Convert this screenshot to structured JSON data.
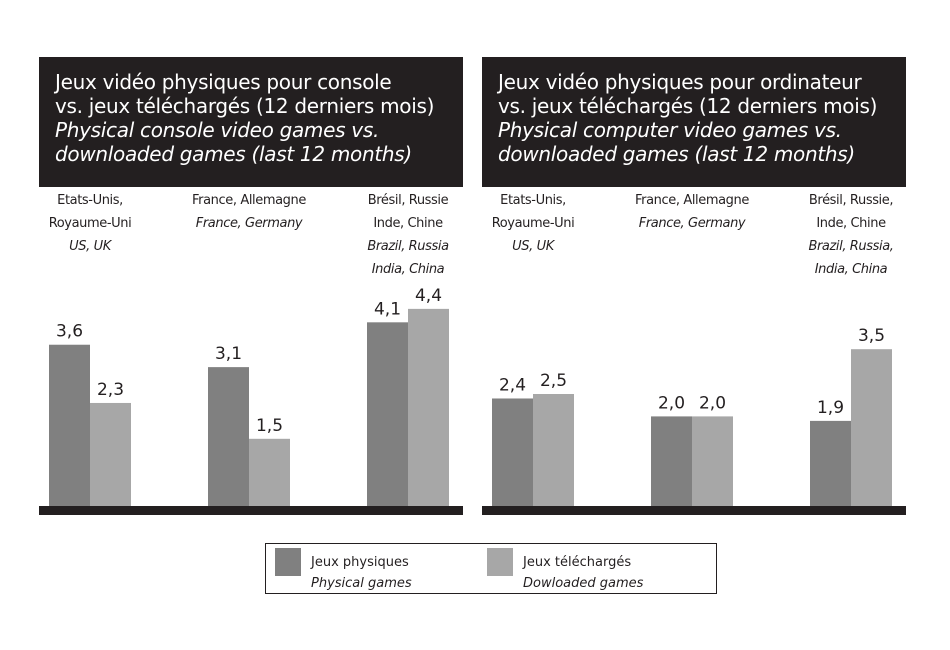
{
  "colors": {
    "physical": "#808080",
    "downloaded": "#a7a7a7",
    "title_bg": "#231f20",
    "axis": "#231f20"
  },
  "legend": {
    "physical": {
      "fr": "Jeux physiques",
      "en": "Physical games"
    },
    "downloaded": {
      "fr": "Jeux téléchargés",
      "en": "Dowloaded games"
    }
  },
  "chart_data": [
    {
      "type": "bar",
      "title": [
        "Jeux vidéo physiques pour console",
        "vs. jeux téléchargés (12 derniers mois)"
      ],
      "subtitle": [
        "Physical console video games vs.",
        "downloaded games (last 12 months)"
      ],
      "categories": [
        {
          "fr": [
            "Etats-Unis,",
            "Royaume-Uni"
          ],
          "en": [
            "US, UK"
          ]
        },
        {
          "fr": [
            "France, Allemagne"
          ],
          "en": [
            "France, Germany"
          ]
        },
        {
          "fr": [
            "Brésil, Russie",
            "Inde, Chine"
          ],
          "en": [
            "Brazil, Russia",
            "India, China"
          ]
        }
      ],
      "series": [
        {
          "name": "Jeux physiques / Physical games",
          "values": [
            3.6,
            3.1,
            4.1
          ],
          "labels": [
            "3,6",
            "3,1",
            "4,1"
          ]
        },
        {
          "name": "Jeux téléchargés / Dowloaded games",
          "values": [
            2.3,
            1.5,
            4.4
          ],
          "labels": [
            "2,3",
            "1,5",
            "4,4"
          ]
        }
      ],
      "ylim": [
        0,
        4.4
      ],
      "grid": false,
      "legend_position": "bottom"
    },
    {
      "type": "bar",
      "title": [
        "Jeux vidéo physiques pour ordinateur",
        "vs. jeux téléchargés (12 derniers mois)"
      ],
      "subtitle": [
        "Physical computer video games vs.",
        "downloaded games (last 12 months)"
      ],
      "categories": [
        {
          "fr": [
            "Etats-Unis,",
            "Royaume-Uni"
          ],
          "en": [
            "US, UK"
          ]
        },
        {
          "fr": [
            "France, Allemagne"
          ],
          "en": [
            "France, Germany"
          ]
        },
        {
          "fr": [
            "Brésil, Russie,",
            "Inde, Chine"
          ],
          "en": [
            "Brazil, Russia,",
            "India, China"
          ]
        }
      ],
      "series": [
        {
          "name": "Jeux physiques / Physical games",
          "values": [
            2.4,
            2.0,
            1.9
          ],
          "labels": [
            "2,4",
            "2,0",
            "1,9"
          ]
        },
        {
          "name": "Jeux téléchargés / Dowloaded games",
          "values": [
            2.5,
            2.0,
            3.5
          ],
          "labels": [
            "2,5",
            "2,0",
            "3,5"
          ]
        }
      ],
      "ylim": [
        0,
        4.4
      ],
      "grid": false,
      "legend_position": "bottom"
    }
  ]
}
